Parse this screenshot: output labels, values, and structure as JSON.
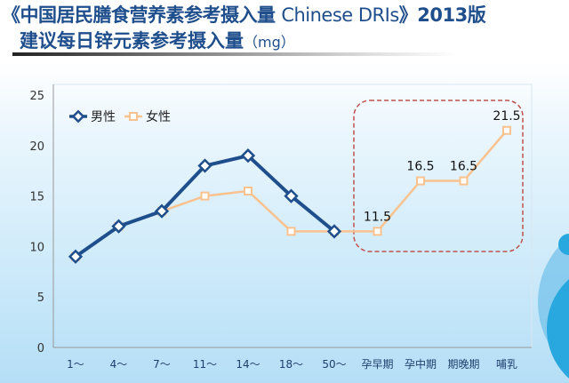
{
  "title": {
    "line1_a": "《中国居民膳食营养素参考摄入量 ",
    "line1_en": "Chinese DRIs",
    "line1_b": "》2013版",
    "line2": "建议每日锌元素参考摄入量",
    "unit": "（mg）"
  },
  "colors": {
    "male": "#1f4e8c",
    "female": "#f9c28e",
    "highlight": "#c0504d"
  },
  "chart_data": {
    "type": "line",
    "title": "建议每日锌元素参考摄入量（mg）",
    "categories": [
      "1～",
      "4～",
      "7～",
      "11～",
      "14～",
      "18～",
      "50～",
      "孕早期",
      "孕中期",
      "期晚期",
      "哺乳"
    ],
    "series": [
      {
        "name": "男性",
        "values": [
          9,
          12,
          13.5,
          18,
          19,
          15,
          11.5,
          null,
          null,
          null,
          null
        ]
      },
      {
        "name": "女性",
        "values": [
          9,
          12,
          13.5,
          15,
          15.5,
          11.5,
          11.5,
          11.5,
          16.5,
          16.5,
          21.5
        ]
      }
    ],
    "data_labels": [
      {
        "index": 7,
        "text": "11.5"
      },
      {
        "index": 8,
        "text": "16.5"
      },
      {
        "index": 9,
        "text": "16.5"
      },
      {
        "index": 10,
        "text": "21.5"
      }
    ],
    "yticks": [
      0,
      5,
      10,
      15,
      20,
      25
    ],
    "ylim": [
      0,
      25
    ],
    "legend": "top-left",
    "grid": false,
    "annotation": "dashed box highlighting 孕早期–哺乳"
  }
}
